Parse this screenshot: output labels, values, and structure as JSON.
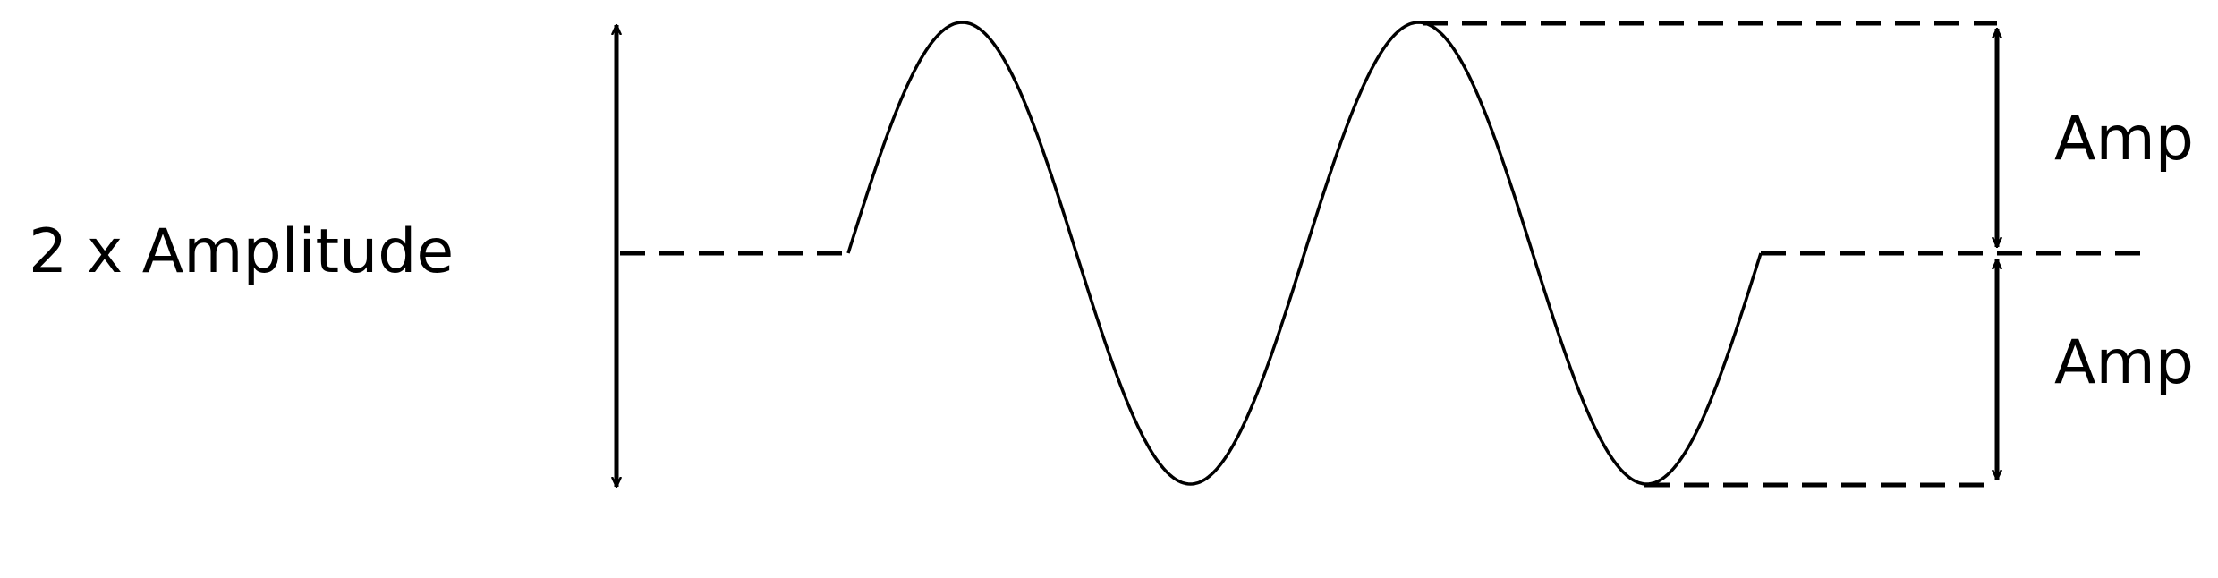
{
  "labels": {
    "left": "2 x Amplitude",
    "right_top": "Amp",
    "right_bottom": "Amp"
  },
  "colors": {
    "stroke": "#000000",
    "background": "#ffffff"
  }
}
